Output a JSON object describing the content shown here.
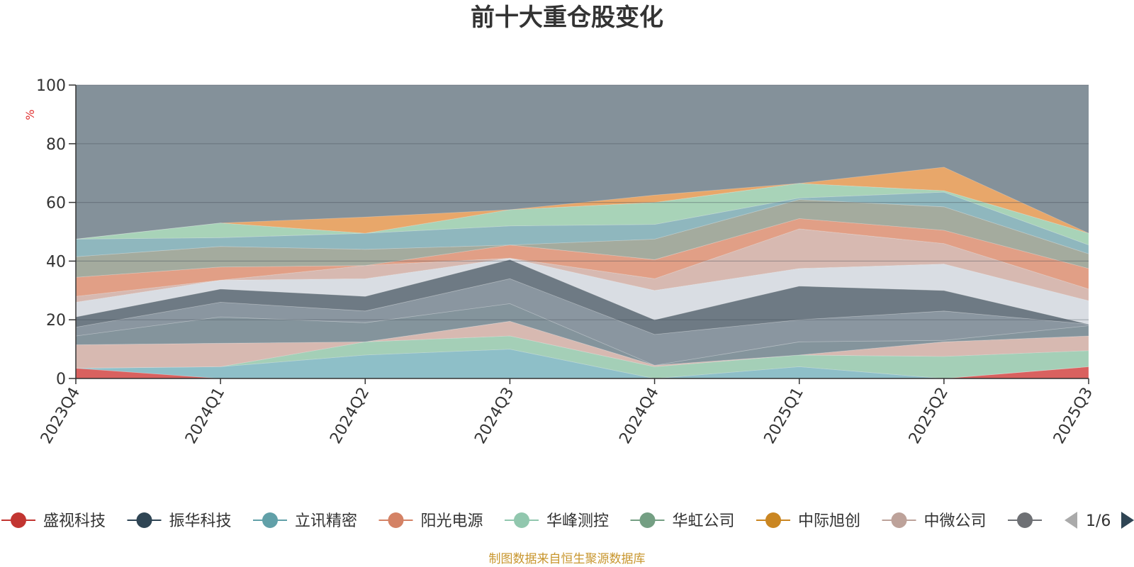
{
  "chart_data": {
    "type": "area",
    "title": "前十大重仓股变化",
    "ylabel": "%",
    "ylim": [
      0,
      100
    ],
    "yticks": [
      "0",
      "20",
      "40",
      "60",
      "80",
      "100"
    ],
    "categories": [
      "2023Q4",
      "2024Q1",
      "2024Q2",
      "2024Q3",
      "2024Q4",
      "2025Q1",
      "2025Q2",
      "2025Q3"
    ],
    "other_color": "#84919a",
    "boundaries": [
      [
        0,
        0,
        0,
        0,
        0,
        0,
        0,
        0
      ],
      [
        3.5,
        0,
        0,
        0,
        0,
        0,
        0,
        4
      ],
      [
        3.5,
        4,
        8,
        10,
        0,
        4,
        0,
        4
      ],
      [
        3.5,
        4,
        12.5,
        14.5,
        4,
        8,
        7.5,
        9.5
      ],
      [
        11.5,
        12,
        12.5,
        19.5,
        4.5,
        8,
        12.5,
        14.5
      ],
      [
        14.5,
        21,
        19,
        25.5,
        4.5,
        12.5,
        13,
        18
      ],
      [
        17.5,
        26,
        23,
        34,
        15,
        20,
        23,
        18.5
      ],
      [
        21,
        30.5,
        28,
        40.5,
        20,
        31.5,
        30,
        18.5
      ],
      [
        26,
        33.5,
        34,
        41,
        30,
        37.5,
        39,
        26.5
      ],
      [
        28,
        33.5,
        38.5,
        41,
        34,
        51,
        46,
        30.5
      ],
      [
        34.5,
        38,
        38.5,
        45.5,
        40.5,
        54.5,
        50.5,
        37.5
      ],
      [
        41.5,
        45,
        44,
        45.5,
        47.5,
        61,
        58.5,
        42.5
      ],
      [
        47.5,
        48,
        49.5,
        52,
        52.5,
        61.5,
        63.5,
        45.5
      ],
      [
        47.5,
        53,
        49.5,
        57.5,
        60,
        66.5,
        64,
        49.5
      ],
      [
        47.5,
        53,
        55,
        57.5,
        62.5,
        66.5,
        72,
        49.5
      ]
    ],
    "layer_colors": [
      "#d9615f",
      "#8ebfc8",
      "#a4cfb7",
      "#d7b9b1",
      "#84949c",
      "#8a96a0",
      "#6e7a84",
      "#d9dde3",
      "#d7b9b1",
      "#e19f86",
      "#a4ab9e",
      "#8fb7be",
      "#a8d3b8",
      "#e8a76a"
    ],
    "legend": [
      {
        "name": "盛视科技",
        "color": "#c23531"
      },
      {
        "name": "振华科技",
        "color": "#2f4554"
      },
      {
        "name": "立讯精密",
        "color": "#61a0a8"
      },
      {
        "name": "阳光电源",
        "color": "#d48265"
      },
      {
        "name": "华峰测控",
        "color": "#91c7ae"
      },
      {
        "name": "华虹公司",
        "color": "#749f83"
      },
      {
        "name": "中际旭创",
        "color": "#ca8622"
      },
      {
        "name": "中微公司",
        "color": "#bda29a"
      },
      {
        "name": "",
        "color": "#6e7074"
      }
    ],
    "legend_page": "1/6",
    "source": "制图数据来自恒生聚源数据库"
  }
}
